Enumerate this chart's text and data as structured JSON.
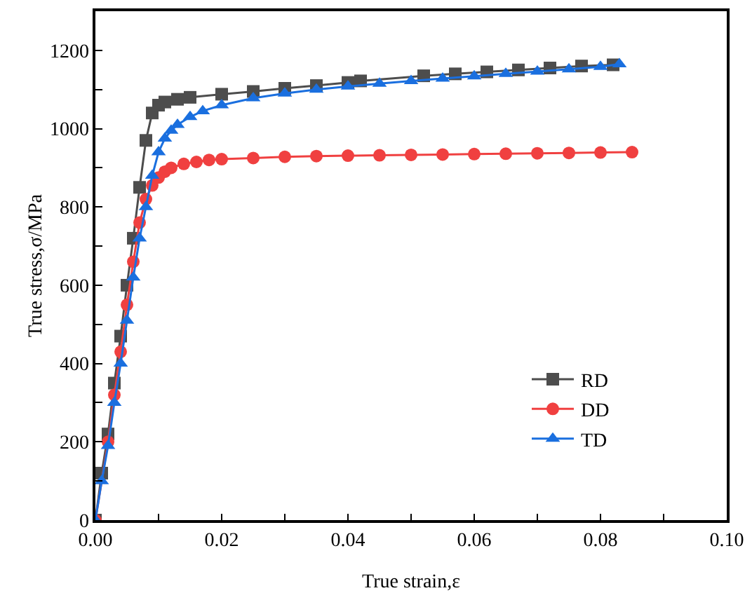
{
  "chart_data": {
    "type": "line",
    "xlabel": "True strain,ε",
    "ylabel": "True stress,σ/MPa",
    "xlim": [
      0,
      0.1
    ],
    "ylim": [
      0,
      1300
    ],
    "xticks": [
      {
        "value": 0,
        "label": "0.00"
      },
      {
        "value": 0.01,
        "label": null
      },
      {
        "value": 0.02,
        "label": "0.02"
      },
      {
        "value": 0.03,
        "label": null
      },
      {
        "value": 0.04,
        "label": "0.04"
      },
      {
        "value": 0.05,
        "label": null
      },
      {
        "value": 0.06,
        "label": "0.06"
      },
      {
        "value": 0.07,
        "label": null
      },
      {
        "value": 0.08,
        "label": "0.08"
      },
      {
        "value": 0.09,
        "label": null
      },
      {
        "value": 0.1,
        "label": "0.10"
      }
    ],
    "yticks": [
      0,
      {
        "value": 100,
        "label": null
      },
      200,
      {
        "value": 300,
        "label": null
      },
      400,
      {
        "value": 500,
        "label": null
      },
      600,
      {
        "value": 700,
        "label": null
      },
      800,
      {
        "value": 900,
        "label": null
      },
      1000,
      {
        "value": 1100,
        "label": null
      },
      1200
    ],
    "grid": false,
    "legend": "bottom right",
    "line_style": "solid",
    "series": [
      {
        "name": "RD",
        "color": "#4d4d4d",
        "marker": "square",
        "x": [
          0,
          0.001,
          0.002,
          0.003,
          0.004,
          0.005,
          0.006,
          0.007,
          0.008,
          0.009,
          0.01,
          0.011,
          0.013,
          0.015,
          0.02,
          0.025,
          0.03,
          0.035,
          0.04,
          0.042,
          0.052,
          0.057,
          0.062,
          0.067,
          0.072,
          0.077,
          0.082
        ],
        "values": [
          0,
          120,
          220,
          350,
          470,
          600,
          720,
          850,
          970,
          1040,
          1060,
          1068,
          1075,
          1080,
          1088,
          1095,
          1103,
          1110,
          1118,
          1122,
          1135,
          1140,
          1145,
          1150,
          1155,
          1160,
          1163
        ]
      },
      {
        "name": "DD",
        "color": "#f04040",
        "marker": "circle",
        "x": [
          0,
          0.002,
          0.003,
          0.004,
          0.005,
          0.006,
          0.007,
          0.008,
          0.009,
          0.01,
          0.011,
          0.012,
          0.014,
          0.016,
          0.018,
          0.02,
          0.025,
          0.03,
          0.035,
          0.04,
          0.045,
          0.05,
          0.055,
          0.06,
          0.065,
          0.07,
          0.075,
          0.08,
          0.085
        ],
        "values": [
          0,
          200,
          320,
          430,
          550,
          660,
          760,
          820,
          855,
          875,
          890,
          900,
          910,
          915,
          920,
          922,
          925,
          928,
          930,
          931,
          932,
          933,
          934,
          935,
          936,
          937,
          938,
          939,
          940
        ]
      },
      {
        "name": "TD",
        "color": "#1a6fdf",
        "marker": "triangle",
        "x": [
          0,
          0.001,
          0.002,
          0.003,
          0.004,
          0.005,
          0.006,
          0.007,
          0.008,
          0.009,
          0.01,
          0.011,
          0.012,
          0.013,
          0.015,
          0.017,
          0.02,
          0.025,
          0.03,
          0.035,
          0.04,
          0.045,
          0.05,
          0.055,
          0.06,
          0.065,
          0.07,
          0.075,
          0.08,
          0.083
        ],
        "values": [
          0,
          100,
          190,
          300,
          400,
          510,
          620,
          720,
          800,
          880,
          940,
          975,
          995,
          1010,
          1030,
          1045,
          1060,
          1078,
          1090,
          1100,
          1108,
          1115,
          1122,
          1128,
          1134,
          1140,
          1146,
          1152,
          1158,
          1165
        ]
      }
    ]
  }
}
